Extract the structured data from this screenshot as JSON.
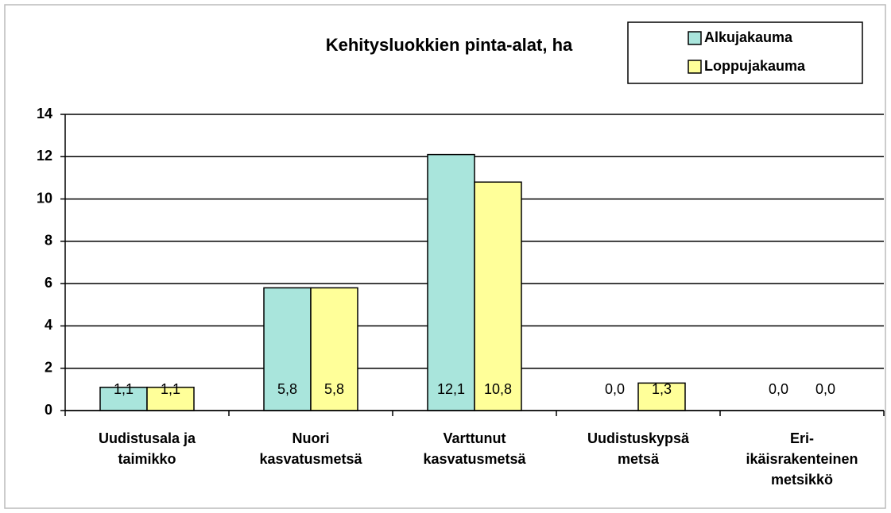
{
  "chart_data": {
    "type": "bar",
    "title": "Kehitysluokkien pinta-alat, ha",
    "categories": [
      "Uudistusala ja\ntaimikko",
      "Nuori\nkasvatusmetsä",
      "Varttunut\nkasvatusmetsä",
      "Uudistuskypsä\nmetsä",
      "Eri-\nikäisrakenteinen\nmetsikkö"
    ],
    "series": [
      {
        "name": "Alkujakauma",
        "color": "#a9e5dc",
        "values": [
          1.1,
          5.8,
          12.1,
          0.0,
          0.0
        ],
        "value_labels": [
          "1,1",
          "5,8",
          "12,1",
          "0,0",
          "0,0"
        ]
      },
      {
        "name": "Loppujakauma",
        "color": "#ffff99",
        "values": [
          1.1,
          5.8,
          10.8,
          1.3,
          0.0
        ],
        "value_labels": [
          "1,1",
          "5,8",
          "10,8",
          "1,3",
          "0,0"
        ]
      }
    ],
    "ylim": [
      0,
      14
    ],
    "yticks": [
      0,
      2,
      4,
      6,
      8,
      10,
      12,
      14
    ],
    "grid": true,
    "legend": "top-right"
  }
}
